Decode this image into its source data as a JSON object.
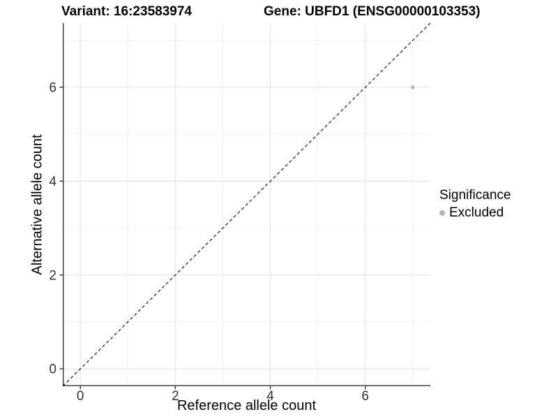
{
  "titles": {
    "variant": "Variant: 16:23583974",
    "gene": "Gene: UBFD1 (ENSG00000103353)"
  },
  "chart_data": {
    "type": "scatter",
    "xlabel": "Reference allele count",
    "ylabel": "Alternative allele count",
    "xlim": [
      -0.37,
      7.37
    ],
    "ylim": [
      -0.37,
      7.37
    ],
    "xticks": [
      0,
      2,
      4,
      6
    ],
    "yticks": [
      0,
      2,
      4,
      6
    ],
    "xticks_minor": [
      1,
      3,
      5,
      7
    ],
    "yticks_minor": [
      1,
      3,
      5,
      7
    ],
    "grid": "major and minor gridlines on, white panel background",
    "identity_line": {
      "slope": 1,
      "intercept": 0,
      "style": "dashed",
      "color": "#1a1a1a"
    },
    "series": [
      {
        "name": "Excluded",
        "color": "#b6b6b6",
        "points": [
          {
            "x": 7,
            "y": 6
          }
        ]
      }
    ],
    "legend": {
      "title": "Significance",
      "position": "right",
      "items": [
        {
          "label": "Excluded",
          "color": "#b6b6b6"
        }
      ]
    }
  },
  "colors": {
    "grid_major": "#e4e4e4",
    "grid_minor": "#f0f0f0",
    "axis_line": "#333333",
    "tick_label": "#333333",
    "text": "#000000"
  }
}
